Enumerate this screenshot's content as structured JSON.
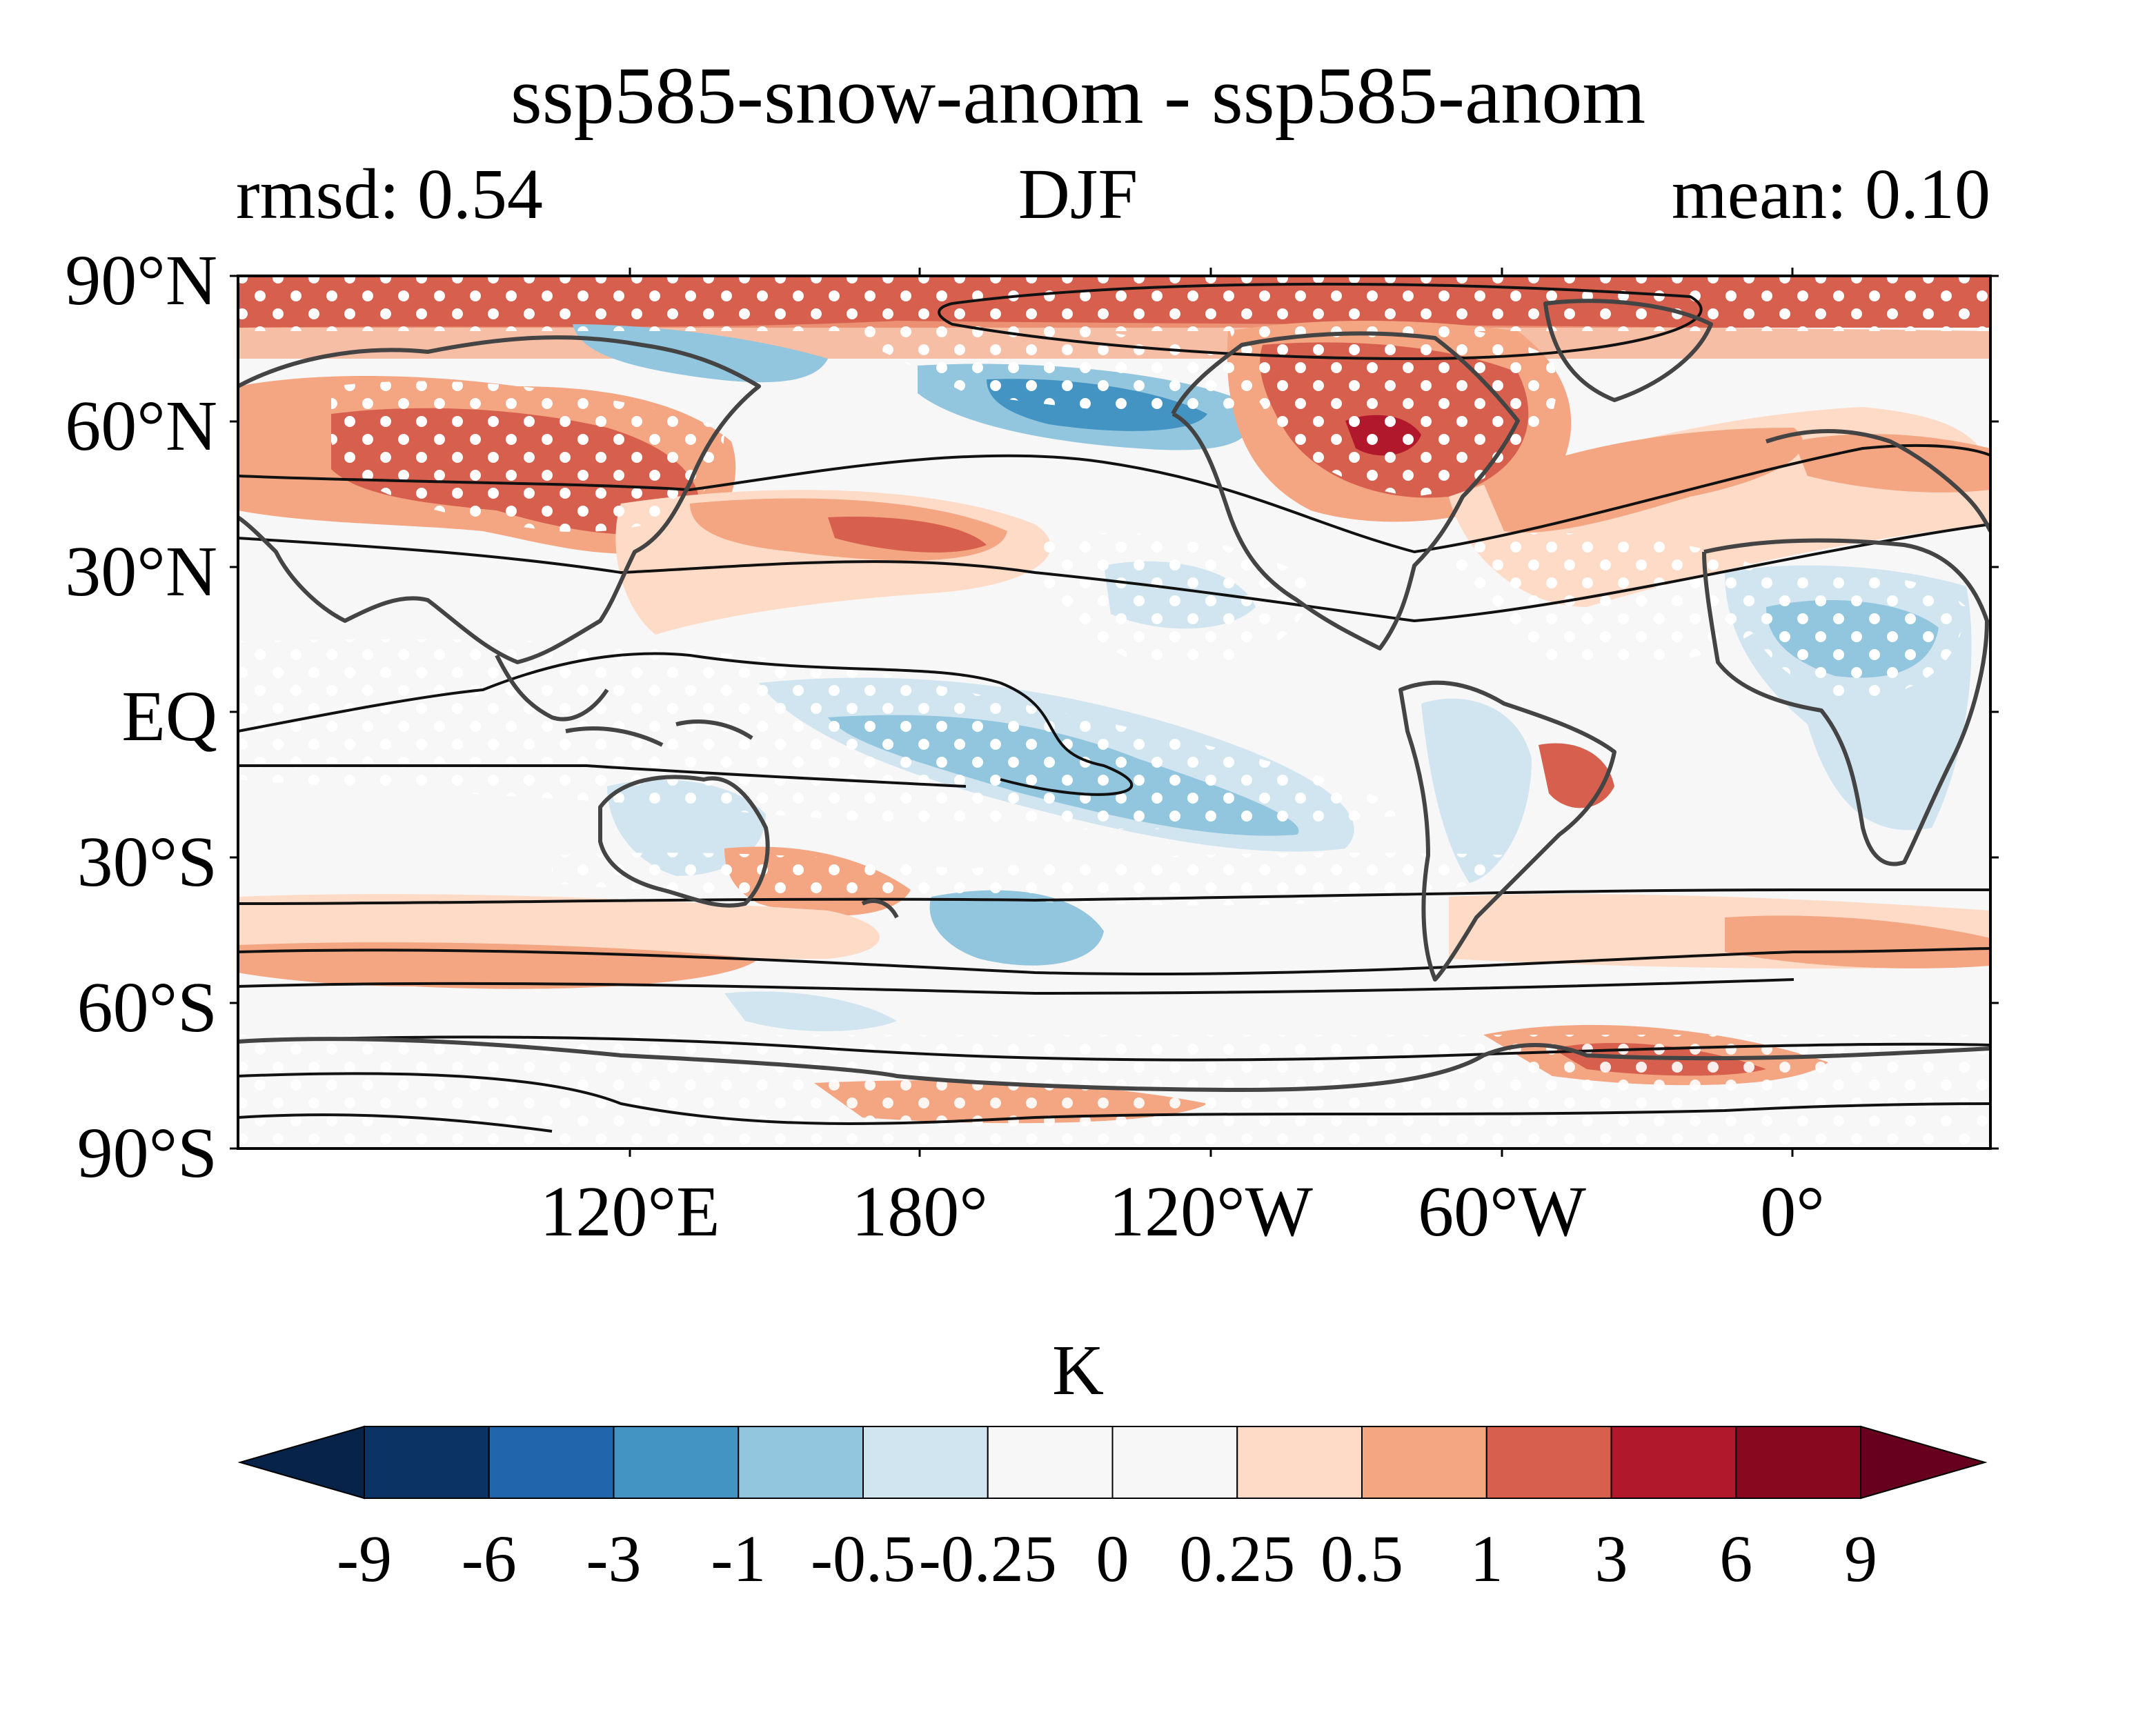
{
  "title": "ssp585-snow-anom - ssp585-anom",
  "subtitle_left": "rmsd: 0.54",
  "subtitle_center": "DJF",
  "subtitle_right": "mean: 0.10",
  "lat_labels": [
    "90°N",
    "60°N",
    "30°N",
    "EQ",
    "30°S",
    "60°S",
    "90°S"
  ],
  "lon_labels": [
    "120°E",
    "180°",
    "120°W",
    "60°W",
    "0°"
  ],
  "colorbar": {
    "unit": "K",
    "ticks": [
      "-9",
      "-6",
      "-3",
      "-1",
      "-0.5",
      "-0.25",
      "0",
      "0.25",
      "0.5",
      "1",
      "3",
      "6",
      "9"
    ],
    "colors": [
      "#08234a",
      "#0b3364",
      "#2166ac",
      "#4393c3",
      "#92c5de",
      "#d1e5f0",
      "#f7f7f7",
      "#f7f7f7",
      "#fddbc7",
      "#f4a582",
      "#d6604d",
      "#b2182b",
      "#87081f",
      "#67001f"
    ]
  },
  "map_colors": {
    "ocean_bg": "#f7f7f7",
    "coast": "#444444",
    "contour": "#111111",
    "stipple": "#ffffff"
  }
}
